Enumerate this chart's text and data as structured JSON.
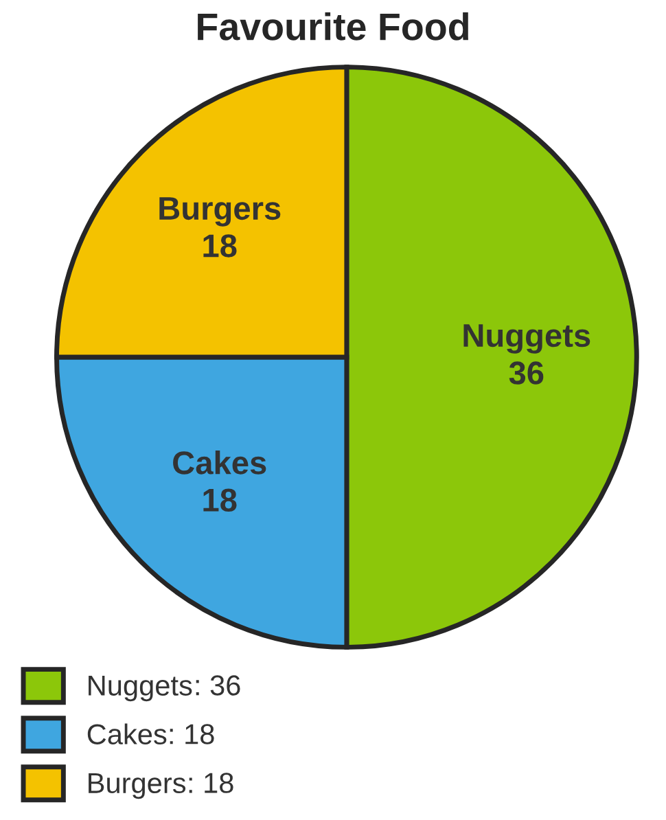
{
  "chart_data": {
    "type": "pie",
    "title": "Favourite Food",
    "categories": [
      "Nuggets",
      "Cakes",
      "Burgers"
    ],
    "values": [
      36,
      18,
      18
    ],
    "colors": [
      "#8cc70a",
      "#3fa6e0",
      "#f4c200"
    ],
    "data_labels": true,
    "annotations": [
      ": 36",
      ": 18",
      ": 18"
    ],
    "legend": "bottom left"
  }
}
